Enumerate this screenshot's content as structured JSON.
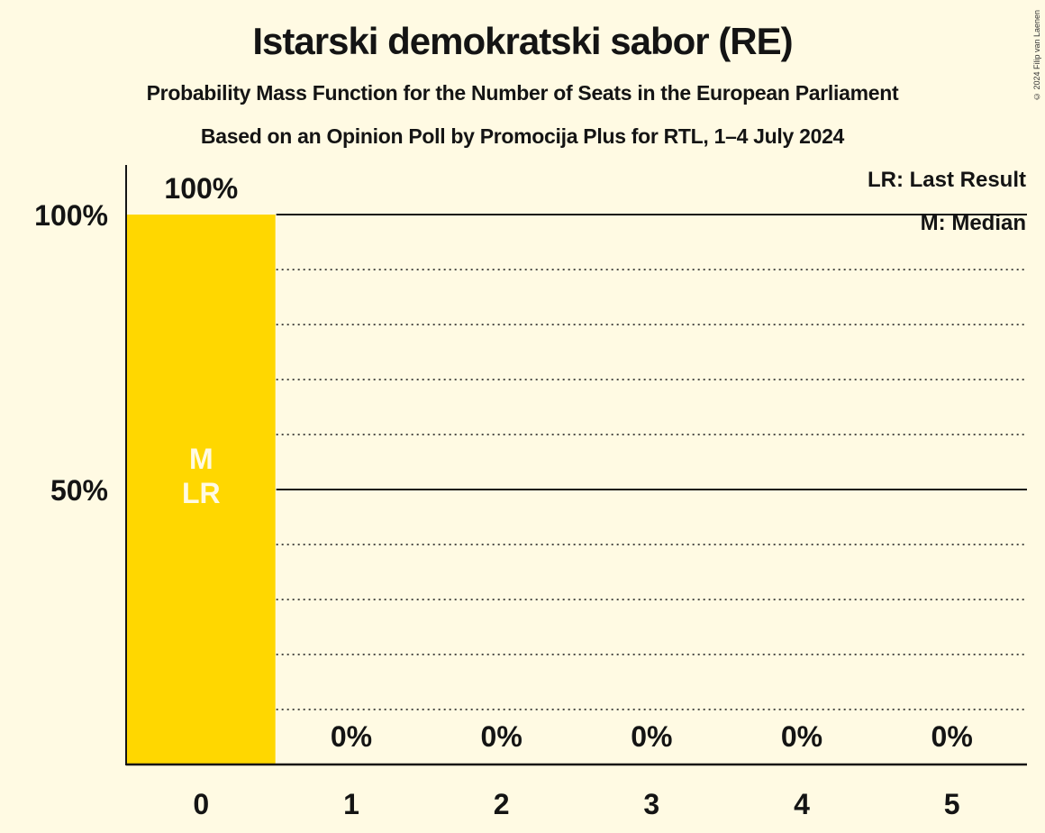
{
  "header": {
    "title": "Istarski demokratski sabor (RE)",
    "subtitle": "Probability Mass Function for the Number of Seats in the European Parliament",
    "source": "Based on an Opinion Poll by Promocija Plus for RTL, 1–4 July 2024",
    "copyright": "© 2024 Filip van Laenen"
  },
  "legend": {
    "last_result": "LR: Last Result",
    "median": "M: Median"
  },
  "colors": {
    "background": "#fffae3",
    "bar": "#ffd700",
    "bar_label": "#fffae3",
    "text": "#141414"
  },
  "chart_data": {
    "type": "bar",
    "title": "Istarski demokratski sabor (RE)",
    "subtitle": "Probability Mass Function for the Number of Seats in the European Parliament",
    "xlabel": "",
    "ylabel": "",
    "categories": [
      "0",
      "1",
      "2",
      "3",
      "4",
      "5"
    ],
    "values": [
      100,
      0,
      0,
      0,
      0,
      0
    ],
    "value_labels": [
      "100%",
      "0%",
      "0%",
      "0%",
      "0%",
      "0%"
    ],
    "bar_annotations": {
      "0": [
        "M",
        "LR"
      ]
    },
    "yticks": [
      50,
      100
    ],
    "ytick_labels": [
      "50%",
      "100%"
    ],
    "ylim": [
      0,
      100
    ],
    "grid": {
      "solid": [
        50,
        100
      ],
      "dotted": [
        10,
        20,
        30,
        40,
        60,
        70,
        80,
        90
      ]
    },
    "legend_position": "top-right",
    "legend_entries": [
      "LR: Last Result",
      "M: Median"
    ]
  }
}
